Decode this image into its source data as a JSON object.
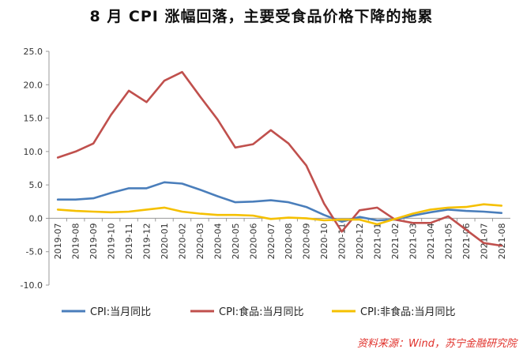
{
  "chart_data": {
    "type": "line",
    "title": "8 月 CPI 涨幅回落，主要受食品价格下降的拖累",
    "x": [
      "2019-07",
      "2019-08",
      "2019-09",
      "2019-10",
      "2019-11",
      "2019-12",
      "2020-01",
      "2020-02",
      "2020-03",
      "2020-04",
      "2020-05",
      "2020-06",
      "2020-07",
      "2020-08",
      "2020-09",
      "2020-10",
      "2020-11",
      "2020-12",
      "2021-01",
      "2021-02",
      "2021-03",
      "2021-04",
      "2021-05",
      "2021-06",
      "2021-07",
      "2021-08"
    ],
    "ylim": [
      -10,
      25
    ],
    "yticks": [
      "25.0",
      "20.0",
      "15.0",
      "10.0",
      "5.0",
      "0.0",
      "-5.0",
      "-10.0"
    ],
    "grid": false,
    "legend_position": "bottom",
    "series": [
      {
        "name": "CPI:当月同比",
        "color": "#4a7ebb",
        "values": [
          2.8,
          2.8,
          3.0,
          3.8,
          4.5,
          4.5,
          5.4,
          5.2,
          4.3,
          3.3,
          2.4,
          2.5,
          2.7,
          2.4,
          1.7,
          0.5,
          -0.5,
          0.2,
          -0.3,
          -0.2,
          0.4,
          0.9,
          1.3,
          1.1,
          1.0,
          0.8
        ]
      },
      {
        "name": "CPI:食品:当月同比",
        "color": "#c0504d",
        "values": [
          9.1,
          10.0,
          11.2,
          15.5,
          19.1,
          17.4,
          20.6,
          21.9,
          18.3,
          14.8,
          10.6,
          11.1,
          13.2,
          11.2,
          7.9,
          2.2,
          -2.0,
          1.2,
          1.6,
          -0.2,
          -0.7,
          -0.7,
          0.3,
          -1.7,
          -3.7,
          -4.1
        ]
      },
      {
        "name": "CPI:非食品:当月同比",
        "color": "#f5c000",
        "values": [
          1.3,
          1.1,
          1.0,
          0.9,
          1.0,
          1.3,
          1.6,
          1.0,
          0.7,
          0.5,
          0.5,
          0.4,
          -0.1,
          0.1,
          0.0,
          -0.3,
          -0.2,
          -0.2,
          -0.9,
          -0.1,
          0.7,
          1.3,
          1.6,
          1.7,
          2.1,
          1.9
        ]
      }
    ],
    "source": "资料来源：Wind，苏宁金融研究院"
  }
}
